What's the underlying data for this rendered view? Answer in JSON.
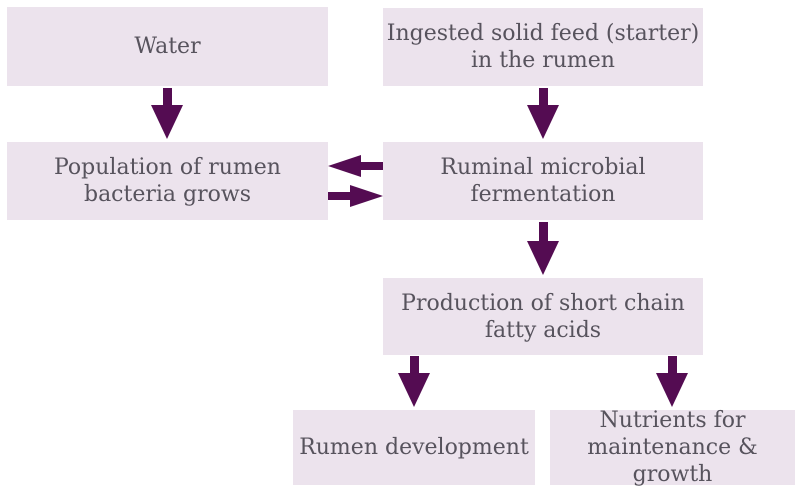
{
  "theme": {
    "background": "#ffffff",
    "box-fill": "#ece3ed",
    "arrow-color": "#540c52",
    "text-color": "#57535d"
  },
  "diagram": {
    "type": "flowchart",
    "nodes": {
      "water": {
        "label": "Water"
      },
      "ingested_feed": {
        "label": "Ingested solid feed (starter)\nin the rumen"
      },
      "population": {
        "label": "Population of rumen\nbacteria grows"
      },
      "fermentation": {
        "label": "Ruminal microbial\nfermentation"
      },
      "production": {
        "label": "Production of short chain\nfatty acids"
      },
      "rumen_development": {
        "label": "Rumen development"
      },
      "nutrients": {
        "label": "Nutrients for\nmaintenance & growth"
      }
    },
    "edges": [
      {
        "from": "water",
        "to": "population",
        "direction": "down"
      },
      {
        "from": "ingested_feed",
        "to": "fermentation",
        "direction": "down"
      },
      {
        "from": "fermentation",
        "to": "population",
        "direction": "left"
      },
      {
        "from": "population",
        "to": "fermentation",
        "direction": "right"
      },
      {
        "from": "fermentation",
        "to": "production",
        "direction": "down"
      },
      {
        "from": "production",
        "to": "rumen_development",
        "direction": "down"
      },
      {
        "from": "production",
        "to": "nutrients",
        "direction": "down"
      }
    ]
  }
}
